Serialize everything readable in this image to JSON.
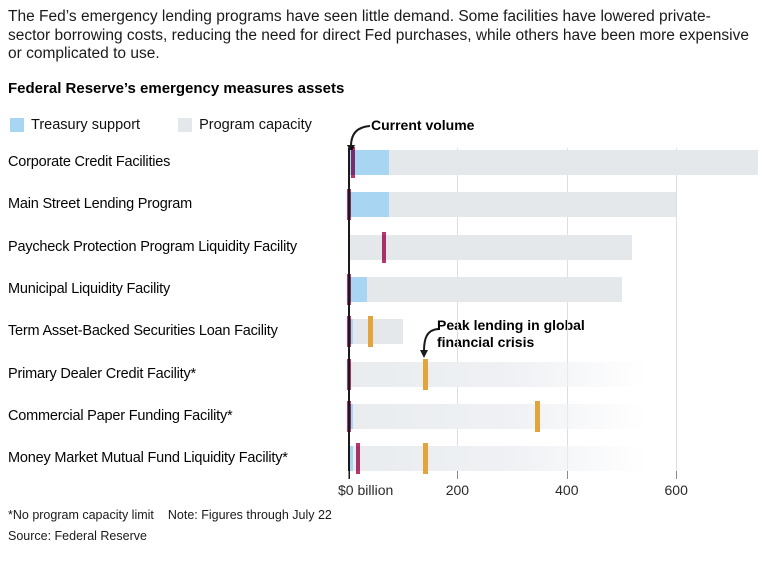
{
  "intro": "The Fed’s emergency lending programs have seen little demand. Some facilities have lowered private-sector borrowing costs, reducing the need for direct Fed purchases, while others have been more expensive or complicated to use.",
  "title": "Federal Reserve’s emergency measures assets",
  "legend": {
    "treasury_label": "Treasury support",
    "capacity_label": "Program capacity"
  },
  "annotations": {
    "current_volume": "Current volume",
    "peak_line1": "Peak lending in global",
    "peak_line2": "financial crisis"
  },
  "footnote_left": "*No program capacity limit",
  "footnote_right": "Note: Figures through July 22",
  "source": "Source: Federal Reserve",
  "colors": {
    "treasury": "#a8d5f2",
    "capacity": "#e5e8ea",
    "capacity_faded_start": "#e9ecee",
    "current": "#b8356f",
    "peak": "#e3a43e",
    "axis": "#1a1a1a",
    "gridline": "#dcdfe2"
  },
  "chart_data": {
    "type": "bar",
    "orientation": "horizontal",
    "title": "Federal Reserve's emergency measures assets",
    "unit": "$ billion",
    "x_ticks": [
      0,
      200,
      400,
      600
    ],
    "x_tick_labels": [
      "$0 billion",
      "200",
      "400",
      "600"
    ],
    "xlim": [
      0,
      760
    ],
    "grid": true,
    "legend_position": "top-left",
    "series_note": "treasury_support and program_capacity are bars; current_volume and peak_gfc_lending are line markers",
    "rows": [
      {
        "label": "Corporate Credit Facilities",
        "treasury_support": 75,
        "program_capacity": 750,
        "current_volume": 10,
        "peak_gfc_lending": null,
        "no_capacity_limit": false
      },
      {
        "label": "Main Street Lending Program",
        "treasury_support": 75,
        "program_capacity": 600,
        "current_volume": 1,
        "peak_gfc_lending": null,
        "no_capacity_limit": false
      },
      {
        "label": "Paycheck Protection Program Liquidity Facility",
        "treasury_support": 0,
        "program_capacity": 520,
        "current_volume": 65,
        "peak_gfc_lending": null,
        "no_capacity_limit": false
      },
      {
        "label": "Municipal Liquidity Facility",
        "treasury_support": 35,
        "program_capacity": 500,
        "current_volume": 1,
        "peak_gfc_lending": null,
        "no_capacity_limit": false
      },
      {
        "label": "Term Asset-Backed Securities Loan Facility",
        "treasury_support": 10,
        "program_capacity": 100,
        "current_volume": 2,
        "peak_gfc_lending": 40,
        "no_capacity_limit": false
      },
      {
        "label": "Primary Dealer Credit Facility*",
        "treasury_support": 0,
        "program_capacity": null,
        "current_volume": 1,
        "peak_gfc_lending": 140,
        "no_capacity_limit": true
      },
      {
        "label": "Commercial Paper Funding Facility*",
        "treasury_support": 10,
        "program_capacity": null,
        "current_volume": 2,
        "peak_gfc_lending": 345,
        "no_capacity_limit": true
      },
      {
        "label": "Money Market Mutual Fund Liquidity Facility*",
        "treasury_support": 10,
        "program_capacity": null,
        "current_volume": 18,
        "peak_gfc_lending": 140,
        "no_capacity_limit": true
      }
    ]
  }
}
